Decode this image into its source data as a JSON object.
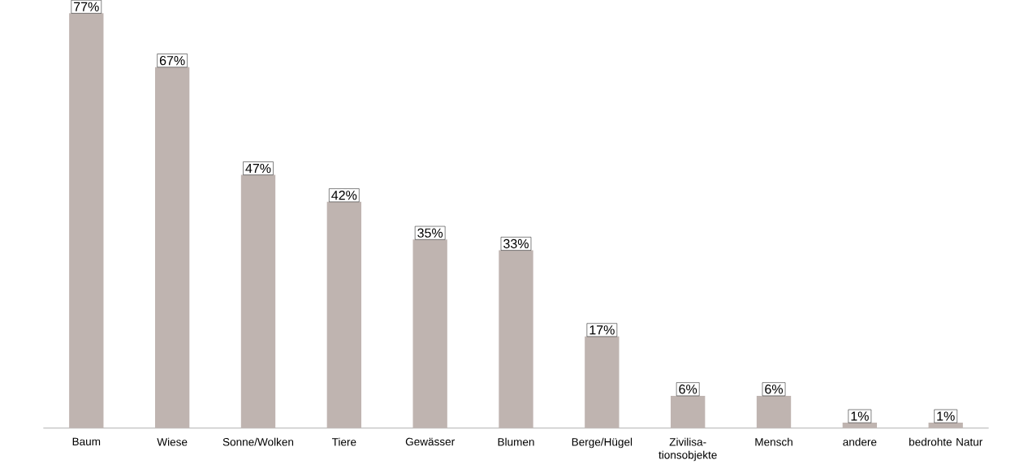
{
  "chart_data": {
    "type": "bar",
    "categories": [
      "Baum",
      "Wiese",
      "Sonne/Wolken",
      "Tiere",
      "Gewässer",
      "Blumen",
      "Berge/Hügel",
      "Zivilisa-tionsobjekte",
      "Mensch",
      "andere",
      "bedrohte Natur"
    ],
    "values": [
      77,
      67,
      47,
      42,
      35,
      33,
      17,
      6,
      6,
      1,
      1
    ],
    "value_labels": [
      "77%",
      "67%",
      "47%",
      "42%",
      "35%",
      "33%",
      "17%",
      "6%",
      "6%",
      "1%",
      "1%"
    ],
    "color": "#bfb4b0"
  }
}
